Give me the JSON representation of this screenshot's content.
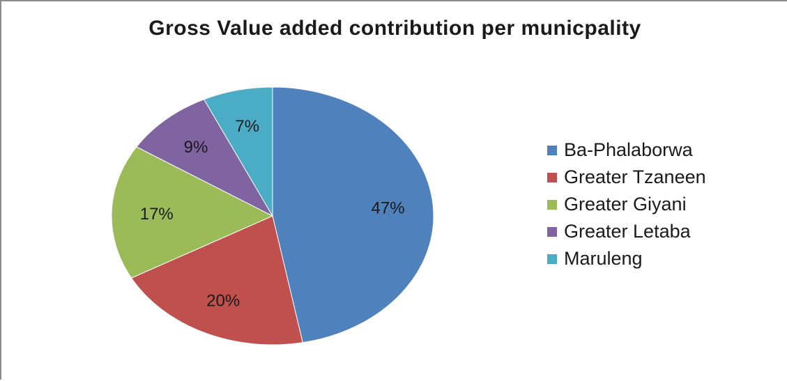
{
  "chart_data": {
    "type": "pie",
    "title": "Gross Value added contribution per municpality",
    "categories": [
      "Ba-Phalaborwa",
      "Greater Tzaneen",
      "Greater Giyani",
      "Greater Letaba",
      "Maruleng"
    ],
    "values": [
      47,
      20,
      17,
      9,
      7
    ],
    "data_labels": [
      "47%",
      "20%",
      "17%",
      "9%",
      "7%"
    ],
    "colors": [
      "#4f81bd",
      "#c0504d",
      "#9bbb59",
      "#8064a2",
      "#4bacc6"
    ],
    "legend_position": "right",
    "start_angle": "12 o'clock",
    "direction": "clockwise"
  }
}
